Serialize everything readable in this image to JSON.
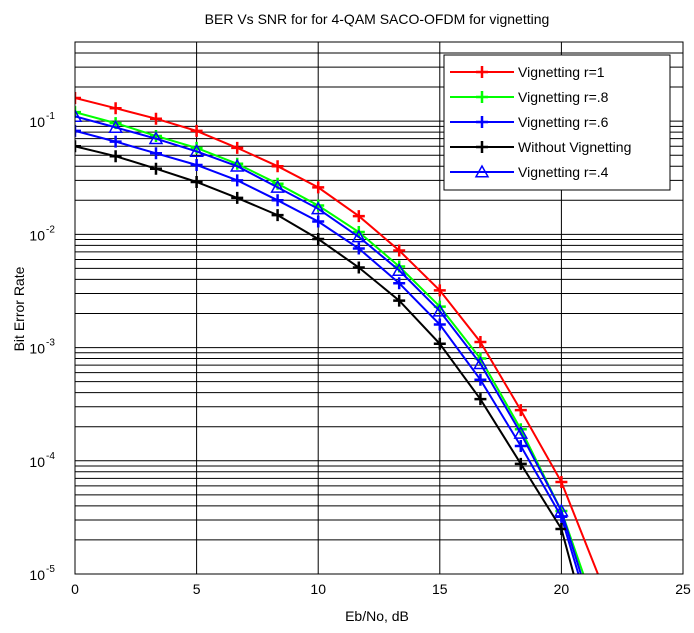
{
  "chart_data": {
    "type": "line",
    "title": "BER Vs SNR for for 4-QAM SACO-OFDM for vignetting",
    "xlabel": "Eb/No, dB",
    "ylabel": "Bit Error Rate",
    "xlim": [
      0,
      25
    ],
    "ylim": [
      1e-05,
      0.5
    ],
    "yscale": "log",
    "grid": true,
    "legend_position": "top-right",
    "x_ticks": [
      "0",
      "5",
      "10",
      "15",
      "20",
      "25"
    ],
    "y_ticks": [
      {
        "base": "10",
        "exp": "-1",
        "value": 0.1
      },
      {
        "base": "10",
        "exp": "-2",
        "value": 0.01
      },
      {
        "base": "10",
        "exp": "-3",
        "value": 0.001
      },
      {
        "base": "10",
        "exp": "-4",
        "value": 0.0001
      },
      {
        "base": "10",
        "exp": "-5",
        "value": 1e-05
      }
    ],
    "series": [
      {
        "name": "Vignetting r=1",
        "color": "#ff0000",
        "marker": "plus",
        "x": [
          0,
          1.67,
          3.33,
          5,
          6.67,
          8.33,
          10,
          11.67,
          13.33,
          15,
          16.67,
          18.33,
          20,
          21.5
        ],
        "y": [
          0.16,
          0.13,
          0.105,
          0.082,
          0.058,
          0.04,
          0.026,
          0.0145,
          0.0072,
          0.0032,
          0.00112,
          0.00028,
          6.5e-05,
          1e-05
        ]
      },
      {
        "name": "Vignetting r=.8",
        "color": "#00ff00",
        "marker": "plus",
        "x": [
          0,
          1.67,
          3.33,
          5,
          6.67,
          8.33,
          10,
          11.67,
          13.33,
          15,
          16.67,
          18.33,
          20,
          20.9
        ],
        "y": [
          0.12,
          0.096,
          0.074,
          0.058,
          0.042,
          0.028,
          0.018,
          0.0105,
          0.0052,
          0.0023,
          0.0008,
          0.00019,
          3.6e-05,
          1e-05
        ]
      },
      {
        "name": "Vignetting r=.6",
        "color": "#0000ff",
        "marker": "plus",
        "x": [
          0,
          1.67,
          3.33,
          5,
          6.67,
          8.33,
          10,
          11.67,
          13.33,
          15,
          16.67,
          18.33,
          20,
          20.7
        ],
        "y": [
          0.082,
          0.066,
          0.052,
          0.041,
          0.03,
          0.02,
          0.013,
          0.0075,
          0.0037,
          0.0016,
          0.00052,
          0.000135,
          3.2e-05,
          1e-05
        ]
      },
      {
        "name": "Without Vignetting",
        "color": "#000000",
        "marker": "plus",
        "x": [
          0,
          1.67,
          3.33,
          5,
          6.67,
          8.33,
          10,
          11.67,
          13.33,
          15,
          16.67,
          18.33,
          20,
          20.5
        ],
        "y": [
          0.06,
          0.049,
          0.038,
          0.029,
          0.021,
          0.0148,
          0.0091,
          0.0051,
          0.0026,
          0.00108,
          0.00035,
          9.4e-05,
          2.5e-05,
          1e-05
        ]
      },
      {
        "name": "Vignetting r=.4",
        "color": "#0000ff",
        "marker": "triangle",
        "x": [
          0,
          1.67,
          3.33,
          5,
          6.67,
          8.33,
          10,
          11.67,
          13.33,
          15,
          16.67,
          18.33,
          20,
          20.8
        ],
        "y": [
          0.11,
          0.088,
          0.07,
          0.054,
          0.04,
          0.026,
          0.0168,
          0.0095,
          0.0048,
          0.0021,
          0.00072,
          0.000175,
          3.6e-05,
          1e-05
        ]
      }
    ]
  }
}
